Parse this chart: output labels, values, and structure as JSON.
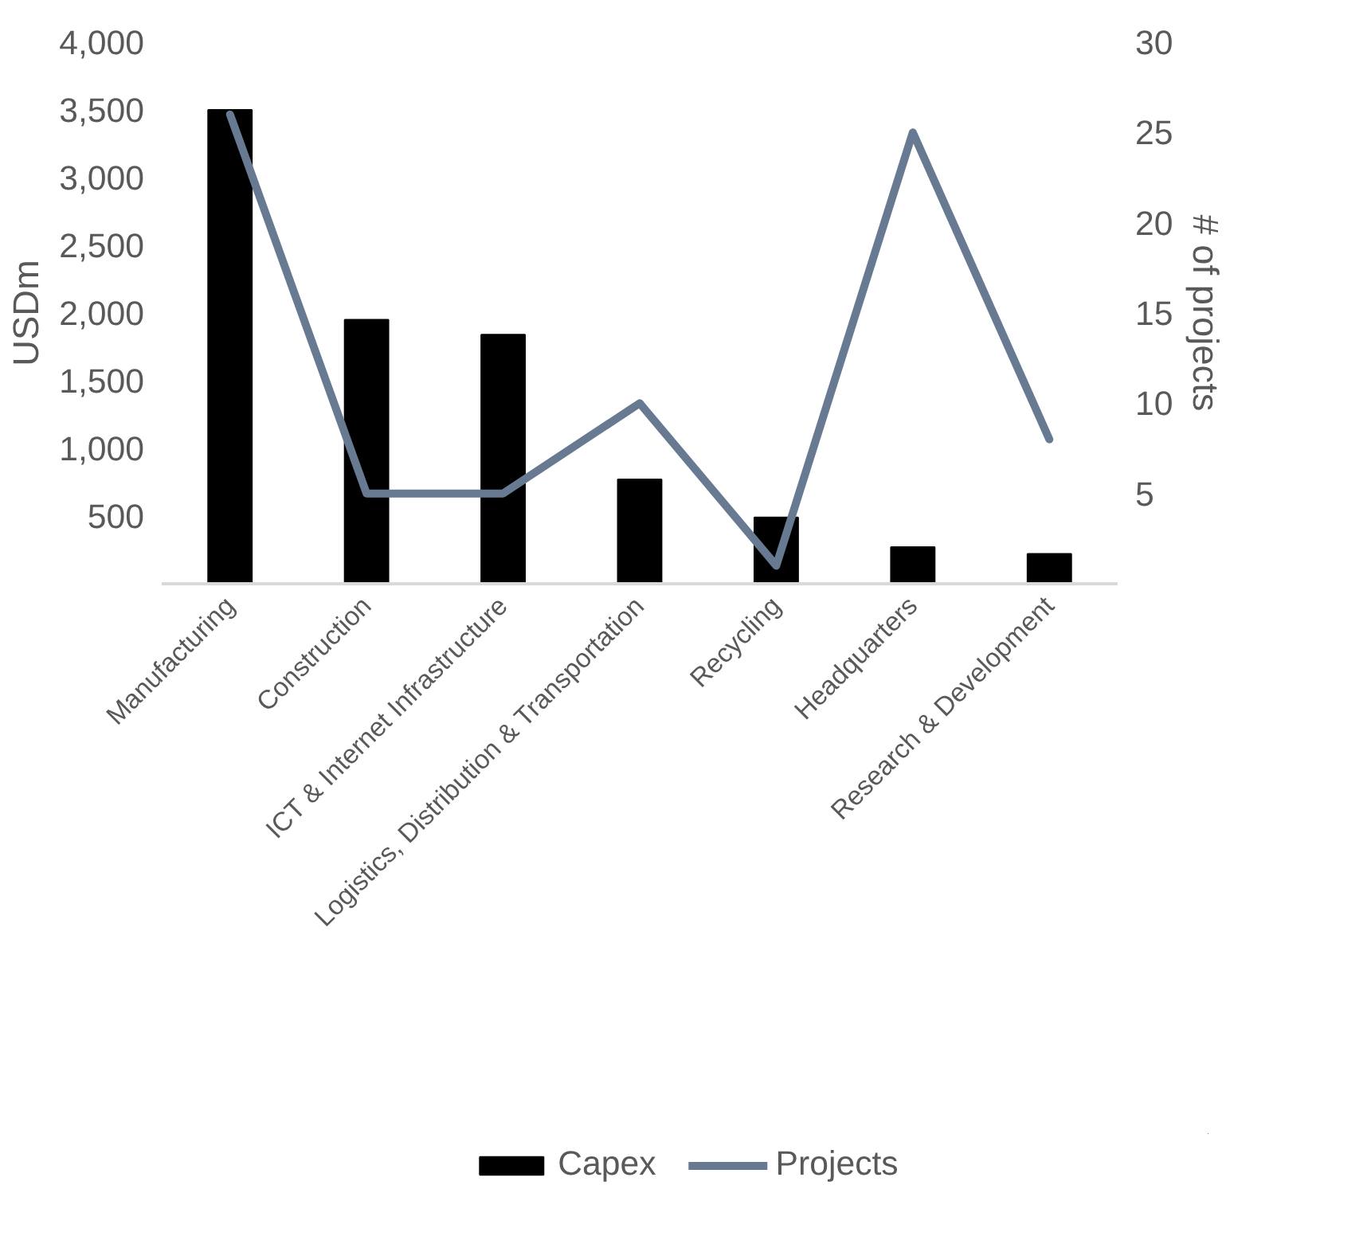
{
  "chart_data": {
    "type": "bar",
    "categories": [
      "Manufacturing",
      "Construction",
      "ICT & Internet Infrastructure",
      "Logistics, Distribution & Transportation",
      "Recycling",
      "Headquarters",
      "Research & Development"
    ],
    "ylabel": "USDm",
    "y2label": "# of projects",
    "ylim": [
      0,
      4000
    ],
    "yticks": [
      500,
      {
        "value": 1000,
        "label": "1,000"
      },
      {
        "value": 1500,
        "label": "1,500"
      },
      {
        "value": 2000,
        "label": "2,000"
      },
      {
        "value": 2500,
        "label": "2,500"
      },
      {
        "value": 3000,
        "label": "3,000"
      },
      {
        "value": 3500,
        "label": "3,500"
      },
      {
        "value": 4000,
        "label": "4,000"
      }
    ],
    "y2lim": [
      0,
      30
    ],
    "y2ticks": [
      5,
      10,
      15,
      20,
      25,
      30
    ],
    "grid": false,
    "legend": "bottom",
    "series": [
      {
        "name": "Capex",
        "type": "bar",
        "color": "#000000",
        "values": [
          3500,
          1950,
          1840,
          770,
          490,
          270,
          220
        ]
      },
      {
        "name": "Projects",
        "type": "line",
        "axis": "y2",
        "color": "#687a92",
        "values": [
          26,
          5,
          5,
          10,
          1,
          25,
          8
        ]
      }
    ]
  }
}
